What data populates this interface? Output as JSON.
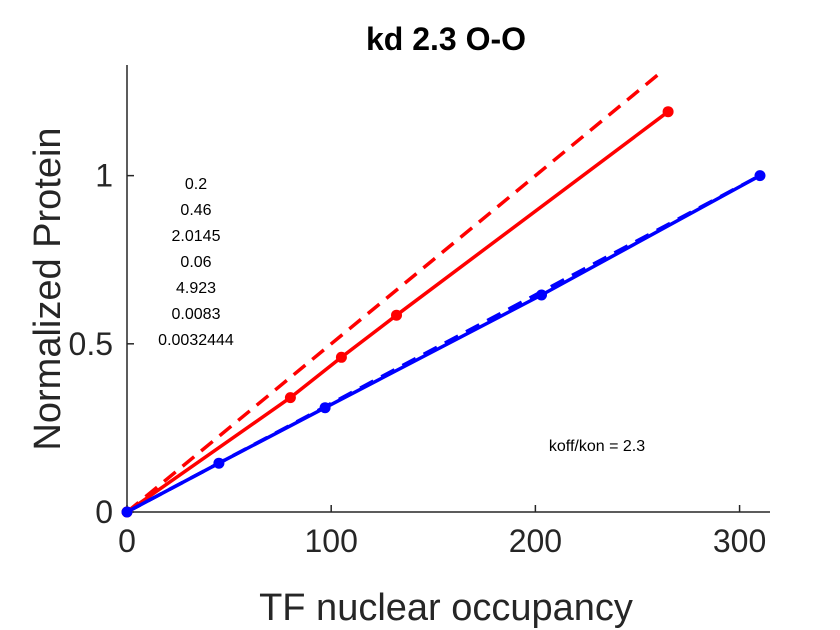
{
  "chart_data": {
    "type": "line",
    "title": "kd 2.3 O-O",
    "xlabel": "TF nuclear occupancy",
    "ylabel": "Normalized Protein",
    "xlim": [
      0,
      310
    ],
    "ylim": [
      0,
      1.32
    ],
    "xticks": [
      0,
      100,
      200,
      300
    ],
    "xtick_labels": [
      "0",
      "100",
      "200",
      "300"
    ],
    "yticks": [
      0,
      0.5,
      1
    ],
    "ytick_labels": [
      "0",
      "0.5",
      "1"
    ],
    "grid": false,
    "series": [
      {
        "color": "#ff0000",
        "style": "solid",
        "markers": true,
        "x": [
          0,
          80,
          105,
          132,
          265
        ],
        "y": [
          0,
          0.34,
          0.46,
          0.585,
          1.19
        ]
      },
      {
        "color": "#ff0000",
        "style": "dashed",
        "markers": false,
        "x": [
          0,
          262
        ],
        "y": [
          0,
          1.31
        ]
      },
      {
        "color": "#0000ff",
        "style": "solid",
        "markers": true,
        "x": [
          0,
          45,
          97,
          203,
          310
        ],
        "y": [
          0,
          0.145,
          0.31,
          0.645,
          1.0
        ]
      },
      {
        "color": "#0000ff",
        "style": "dashed",
        "markers": false,
        "x": [
          0,
          310
        ],
        "y": [
          0,
          1.0
        ]
      }
    ],
    "annotations": {
      "parameters": [
        "0.2",
        "0.46",
        "2.0145",
        "0.06",
        "4.923",
        "0.0083",
        "0.0032444"
      ],
      "ratio": "koff/kon = 2.3"
    }
  }
}
